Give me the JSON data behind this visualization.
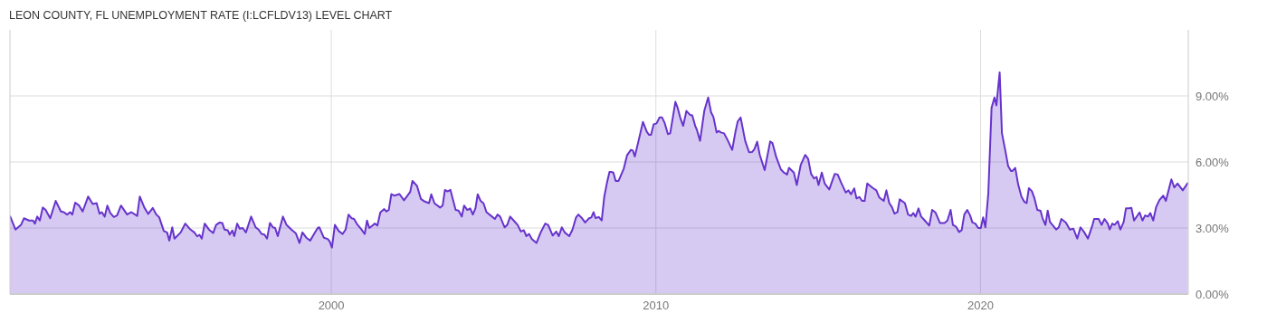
{
  "chart_data": {
    "type": "area",
    "title": "LEON COUNTY, FL UNEMPLOYMENT RATE (I:LCFLDV13) LEVEL CHART",
    "x": [
      1990.1,
      1990.27,
      1990.44,
      1990.53,
      1990.69,
      1990.81,
      1990.87,
      1990.94,
      1991.02,
      1991.11,
      1991.2,
      1991.34,
      1991.51,
      1991.67,
      1991.76,
      1991.86,
      1991.95,
      1992.02,
      1992.11,
      1992.23,
      1992.34,
      1992.51,
      1992.65,
      1992.77,
      1992.86,
      1992.93,
      1993.02,
      1993.1,
      1993.19,
      1993.3,
      1993.4,
      1993.52,
      1993.71,
      1993.84,
      1994.02,
      1994.1,
      1994.24,
      1994.36,
      1994.5,
      1994.61,
      1994.7,
      1994.84,
      1994.94,
      1995.01,
      1995.1,
      1995.17,
      1995.36,
      1995.5,
      1995.64,
      1995.78,
      1995.87,
      1995.94,
      1996.01,
      1996.1,
      1996.23,
      1996.36,
      1996.45,
      1996.56,
      1996.64,
      1996.71,
      1996.81,
      1996.87,
      1996.95,
      1997.01,
      1997.1,
      1997.18,
      1997.27,
      1997.37,
      1997.53,
      1997.67,
      1997.76,
      1997.85,
      1997.94,
      1998.02,
      1998.11,
      1998.2,
      1998.27,
      1998.35,
      1998.51,
      1998.62,
      1998.77,
      1998.91,
      1999.02,
      1999.11,
      1999.23,
      1999.35,
      1999.47,
      1999.58,
      1999.63,
      1999.77,
      1999.89,
      1999.95,
      2000.02,
      2000.11,
      2000.23,
      2000.35,
      2000.44,
      2000.53,
      2000.63,
      2000.7,
      2000.79,
      2000.93,
      2001.03,
      2001.1,
      2001.17,
      2001.26,
      2001.34,
      2001.42,
      2001.51,
      2001.63,
      2001.7,
      2001.77,
      2001.85,
      2001.94,
      2002.1,
      2002.24,
      2002.43,
      2002.5,
      2002.64,
      2002.76,
      2002.88,
      2003.01,
      2003.08,
      2003.18,
      2003.35,
      2003.43,
      2003.5,
      2003.58,
      2003.67,
      2003.83,
      2003.92,
      2004.02,
      2004.09,
      2004.19,
      2004.28,
      2004.36,
      2004.44,
      2004.51,
      2004.6,
      2004.69,
      2004.78,
      2004.95,
      2005.04,
      2005.12,
      2005.2,
      2005.34,
      2005.42,
      2005.51,
      2005.6,
      2005.74,
      2005.84,
      2005.93,
      2006.01,
      2006.09,
      2006.18,
      2006.32,
      2006.45,
      2006.59,
      2006.68,
      2006.82,
      2006.93,
      2007.01,
      2007.1,
      2007.19,
      2007.33,
      2007.43,
      2007.54,
      2007.61,
      2007.72,
      2007.82,
      2007.94,
      2008.01,
      2008.08,
      2008.14,
      2008.24,
      2008.33,
      2008.41,
      2008.5,
      2008.57,
      2008.62,
      2008.69,
      2008.76,
      2008.85,
      2009.01,
      2009.11,
      2009.23,
      2009.29,
      2009.35,
      2009.46,
      2009.6,
      2009.72,
      2009.79,
      2009.85,
      2009.93,
      2010.02,
      2010.11,
      2010.19,
      2010.27,
      2010.37,
      2010.44,
      2010.6,
      2010.67,
      2010.75,
      2010.84,
      2010.94,
      2011.05,
      2011.12,
      2011.21,
      2011.26,
      2011.36,
      2011.49,
      2011.61,
      2011.7,
      2011.77,
      2011.87,
      2011.93,
      2012.0,
      2012.1,
      2012.2,
      2012.35,
      2012.45,
      2012.52,
      2012.61,
      2012.75,
      2012.87,
      2012.96,
      2013.03,
      2013.12,
      2013.2,
      2013.35,
      2013.52,
      2013.59,
      2013.71,
      2013.85,
      2013.94,
      2014.04,
      2014.1,
      2014.25,
      2014.34,
      2014.46,
      2014.6,
      2014.69,
      2014.78,
      2014.87,
      2014.95,
      2015.01,
      2015.11,
      2015.2,
      2015.34,
      2015.51,
      2015.6,
      2015.71,
      2015.85,
      2015.93,
      2016.01,
      2016.11,
      2016.18,
      2016.27,
      2016.35,
      2016.43,
      2016.51,
      2016.69,
      2016.79,
      2016.88,
      2017.02,
      2017.1,
      2017.19,
      2017.27,
      2017.35,
      2017.44,
      2017.51,
      2017.67,
      2017.77,
      2017.86,
      2017.93,
      2018.0,
      2018.09,
      2018.17,
      2018.26,
      2018.42,
      2018.51,
      2018.61,
      2018.75,
      2018.89,
      2018.98,
      2019.08,
      2019.15,
      2019.24,
      2019.34,
      2019.42,
      2019.5,
      2019.59,
      2019.68,
      2019.75,
      2019.84,
      2019.93,
      2020.01,
      2020.08,
      2020.15,
      2020.24,
      2020.34,
      2020.43,
      2020.49,
      2020.59,
      2020.66,
      2020.76,
      2020.85,
      2020.94,
      2020.98,
      2021.07,
      2021.16,
      2021.26,
      2021.35,
      2021.42,
      2021.49,
      2021.58,
      2021.66,
      2021.75,
      2021.85,
      2021.91,
      2022.0,
      2022.07,
      2022.14,
      2022.24,
      2022.33,
      2022.41,
      2022.49,
      2022.63,
      2022.75,
      2022.86,
      2022.98,
      2023.08,
      2023.19,
      2023.31,
      2023.45,
      2023.5,
      2023.64,
      2023.73,
      2023.82,
      2023.92,
      2023.98,
      2024.06,
      2024.13,
      2024.23,
      2024.31,
      2024.41,
      2024.48,
      2024.57,
      2024.65,
      2024.73,
      2024.9,
      2024.99,
      2025.07,
      2025.16,
      2025.23,
      2025.32,
      2025.41,
      2025.51,
      2025.63,
      2025.71,
      2025.88,
      2025.97,
      2026.07,
      2026.23,
      2026.39
    ],
    "series": [
      {
        "color": "#6633cc",
        "values": [
          3.55,
          2.93,
          3.14,
          3.44,
          3.34,
          3.34,
          3.2,
          3.52,
          3.34,
          3.93,
          3.82,
          3.44,
          4.23,
          3.75,
          3.72,
          3.61,
          3.72,
          3.61,
          4.15,
          4.02,
          3.75,
          4.43,
          4.09,
          4.13,
          3.65,
          3.72,
          3.52,
          4.02,
          3.68,
          3.5,
          3.57,
          4.02,
          3.61,
          3.72,
          3.55,
          4.43,
          3.93,
          3.64,
          3.91,
          3.61,
          3.48,
          2.86,
          2.8,
          2.43,
          3.03,
          2.52,
          2.8,
          3.2,
          2.96,
          2.8,
          2.62,
          2.69,
          2.52,
          3.2,
          2.93,
          2.77,
          3.14,
          3.25,
          3.23,
          2.93,
          2.9,
          2.7,
          2.89,
          2.63,
          3.2,
          2.97,
          3.0,
          2.8,
          3.52,
          3.03,
          2.93,
          2.73,
          2.7,
          2.52,
          3.23,
          3.03,
          3.0,
          2.63,
          3.52,
          3.14,
          2.93,
          2.75,
          2.32,
          2.8,
          2.56,
          2.43,
          2.73,
          3.0,
          3.03,
          2.56,
          2.5,
          2.39,
          2.11,
          3.14,
          2.86,
          2.73,
          2.93,
          3.61,
          3.44,
          3.41,
          3.18,
          2.93,
          2.73,
          3.34,
          3.0,
          3.1,
          3.2,
          3.11,
          3.71,
          3.86,
          3.75,
          3.82,
          4.54,
          4.47,
          4.54,
          4.26,
          4.64,
          5.14,
          4.91,
          4.32,
          4.2,
          4.13,
          4.53,
          4.12,
          3.93,
          4.02,
          4.73,
          4.66,
          4.73,
          3.82,
          3.79,
          3.52,
          4.02,
          3.82,
          3.89,
          3.61,
          3.89,
          4.53,
          4.23,
          4.12,
          3.72,
          3.52,
          3.41,
          3.61,
          3.52,
          3.03,
          3.14,
          3.52,
          3.37,
          3.14,
          2.84,
          2.9,
          2.63,
          2.73,
          2.5,
          2.32,
          2.8,
          3.2,
          3.14,
          2.66,
          2.84,
          2.63,
          3.03,
          2.8,
          2.63,
          2.93,
          3.48,
          3.61,
          3.45,
          3.25,
          3.44,
          3.48,
          3.72,
          3.45,
          3.5,
          3.34,
          4.43,
          5.11,
          5.55,
          5.55,
          5.52,
          5.14,
          5.14,
          5.7,
          6.3,
          6.55,
          6.52,
          6.25,
          6.93,
          7.82,
          7.37,
          7.23,
          7.23,
          7.71,
          7.75,
          8.02,
          8.02,
          7.77,
          7.26,
          7.3,
          8.73,
          8.46,
          8.01,
          7.64,
          8.32,
          8.14,
          8.12,
          7.64,
          7.47,
          6.96,
          8.32,
          8.93,
          8.25,
          8.05,
          7.34,
          7.41,
          7.34,
          7.3,
          7.02,
          6.55,
          7.37,
          7.84,
          8.02,
          6.96,
          6.44,
          6.45,
          6.57,
          6.92,
          6.32,
          5.63,
          6.93,
          6.86,
          6.21,
          5.66,
          5.52,
          5.43,
          5.73,
          5.52,
          4.95,
          5.86,
          6.32,
          6.14,
          5.46,
          5.25,
          5.32,
          4.95,
          5.52,
          5.02,
          4.75,
          5.46,
          5.43,
          5.05,
          4.61,
          4.71,
          4.53,
          4.8,
          4.34,
          4.41,
          4.23,
          4.23,
          5.02,
          4.81,
          4.71,
          4.39,
          4.23,
          4.71,
          4.13,
          3.95,
          3.65,
          3.72,
          4.3,
          4.13,
          3.61,
          3.55,
          3.68,
          3.52,
          3.89,
          3.52,
          3.38,
          3.11,
          3.82,
          3.71,
          3.23,
          3.23,
          3.34,
          3.82,
          3.14,
          3.07,
          2.82,
          2.9,
          3.61,
          3.82,
          3.57,
          3.25,
          3.2,
          3.0,
          3.0,
          3.48,
          3.03,
          4.57,
          8.46,
          8.93,
          8.57,
          10.07,
          7.3,
          6.55,
          5.82,
          5.59,
          5.59,
          5.73,
          4.98,
          4.43,
          4.19,
          4.13,
          4.81,
          4.68,
          4.36,
          3.82,
          3.78,
          3.45,
          3.14,
          3.79,
          3.27,
          3.1,
          2.93,
          3.03,
          3.41,
          3.25,
          2.93,
          2.97,
          2.52,
          3.03,
          2.82,
          2.52,
          3.14,
          3.41,
          3.41,
          3.14,
          3.41,
          3.2,
          2.93,
          3.2,
          3.14,
          3.31,
          2.93,
          3.27,
          3.89,
          3.89,
          3.91,
          3.34,
          3.71,
          3.34,
          3.57,
          3.52,
          3.68,
          3.34,
          3.95,
          4.27,
          4.47,
          4.23,
          5.21,
          4.84,
          5.02,
          4.71,
          5.05
        ]
      }
    ],
    "xlim": [
      1990.1,
      2026.4
    ],
    "xticks": [
      2000,
      2010,
      2020
    ],
    "ylim": [
      0,
      12
    ],
    "yticks": [
      {
        "value": 0,
        "label": "0.00%"
      },
      {
        "value": 3,
        "label": "3.00%"
      },
      {
        "value": 6,
        "label": "6.00%"
      },
      {
        "value": 9,
        "label": "9.00%"
      }
    ],
    "grid": true
  }
}
